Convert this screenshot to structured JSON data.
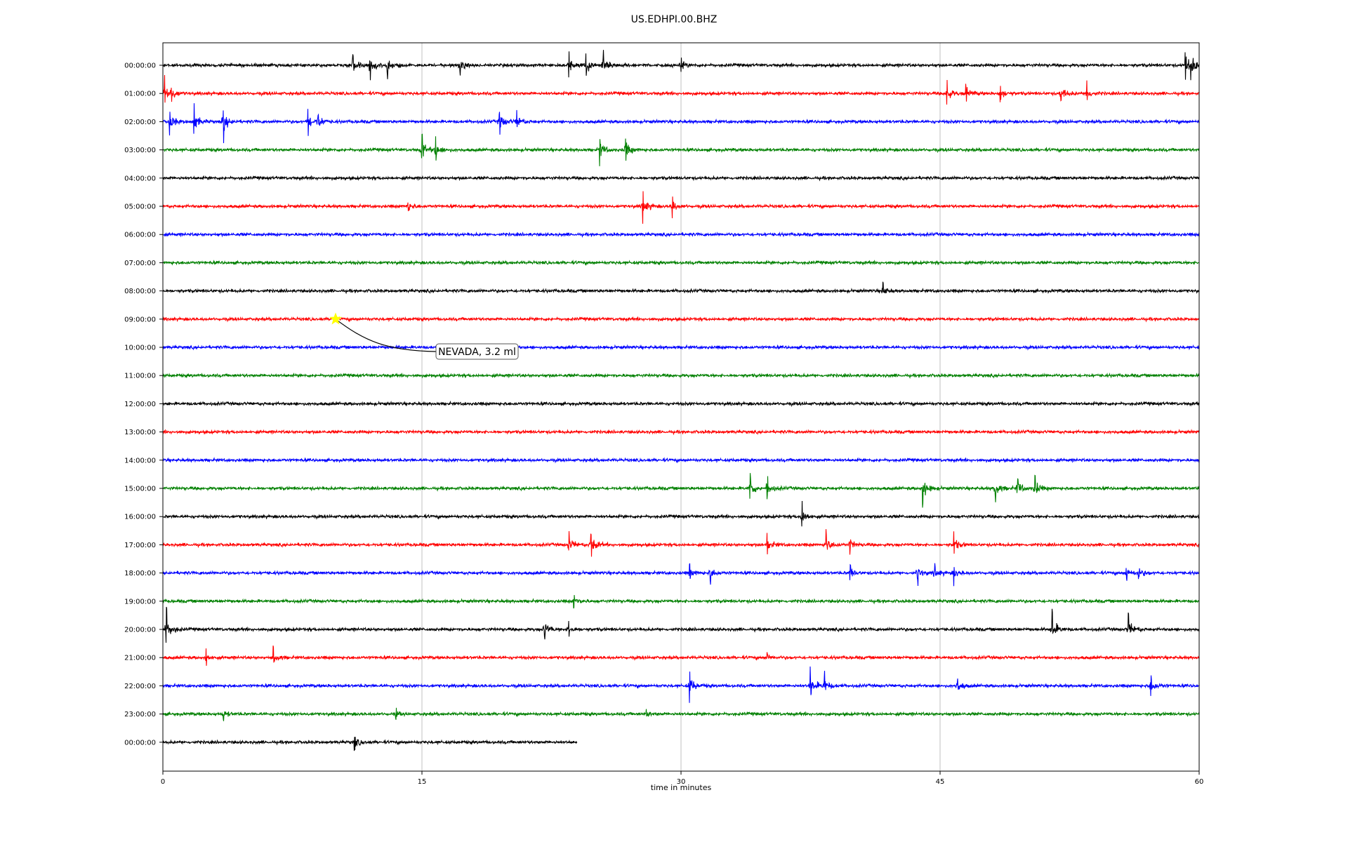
{
  "chart_data": {
    "type": "line",
    "title": "US.EDHPI.00.BHZ",
    "xlabel": "time in minutes",
    "xlim": [
      0,
      60
    ],
    "x_ticks": [
      "0",
      "15",
      "30",
      "45",
      "60"
    ],
    "grid": "vertical lines at 15-minute ticks",
    "row_labels": [
      "00:00:00",
      "01:00:00",
      "02:00:00",
      "03:00:00",
      "04:00:00",
      "05:00:00",
      "06:00:00",
      "07:00:00",
      "08:00:00",
      "09:00:00",
      "10:00:00",
      "11:00:00",
      "12:00:00",
      "13:00:00",
      "14:00:00",
      "15:00:00",
      "16:00:00",
      "17:00:00",
      "18:00:00",
      "19:00:00",
      "20:00:00",
      "21:00:00",
      "22:00:00",
      "23:00:00",
      "00:00:00"
    ],
    "row_colors": [
      "#000000",
      "#ff0000",
      "#0000ff",
      "#008000"
    ],
    "last_row_end_minute": 24,
    "bursts": [
      {
        "row": 0,
        "t": [
          11,
          12,
          13,
          17.2,
          23.5,
          24.5,
          25.5,
          30,
          59.2,
          59.5
        ],
        "a": [
          0.9,
          1.0,
          0.8,
          0.5,
          0.7,
          0.9,
          0.7,
          0.4,
          1.3,
          0.9
        ]
      },
      {
        "row": 1,
        "t": [
          0.1,
          0.5,
          45.4,
          46.5,
          48.5,
          52,
          53.5
        ],
        "a": [
          1.1,
          0.5,
          0.8,
          0.6,
          0.6,
          0.8,
          0.6
        ]
      },
      {
        "row": 2,
        "t": [
          0.4,
          1.8,
          3.5,
          8.4,
          9,
          19.5,
          20.5
        ],
        "a": [
          0.9,
          1.1,
          1.0,
          0.9,
          0.7,
          1.0,
          0.7
        ]
      },
      {
        "row": 3,
        "t": [
          15,
          15.8,
          25.3,
          26.8
        ],
        "a": [
          1.0,
          0.9,
          0.9,
          0.9
        ]
      },
      {
        "row": 5,
        "t": [
          14.2,
          27.8,
          29.5
        ],
        "a": [
          0.5,
          1.0,
          0.7
        ]
      },
      {
        "row": 8,
        "t": [
          41.7
        ],
        "a": [
          0.5
        ]
      },
      {
        "row": 15,
        "t": [
          34,
          35,
          44,
          48.2,
          49.5,
          50.5
        ],
        "a": [
          1.0,
          0.8,
          1.1,
          0.8,
          0.8,
          0.8
        ]
      },
      {
        "row": 16,
        "t": [
          37
        ],
        "a": [
          0.9
        ]
      },
      {
        "row": 17,
        "t": [
          23.5,
          24.8,
          35,
          38.4,
          39.8,
          45.8
        ],
        "a": [
          0.8,
          0.9,
          0.6,
          0.8,
          0.5,
          0.7
        ]
      },
      {
        "row": 18,
        "t": [
          30.5,
          31.7,
          39.8,
          43.7,
          44.7,
          45.8,
          55.8,
          56.5
        ],
        "a": [
          0.6,
          0.6,
          0.5,
          0.6,
          0.6,
          0.6,
          0.6,
          0.5
        ]
      },
      {
        "row": 19,
        "t": [
          23.8
        ],
        "a": [
          0.5
        ]
      },
      {
        "row": 20,
        "t": [
          0.2,
          22.1,
          23.5,
          51.5,
          55.9
        ],
        "a": [
          1.3,
          0.8,
          0.5,
          1.1,
          1.0
        ]
      },
      {
        "row": 21,
        "t": [
          2.5,
          6.4,
          35
        ],
        "a": [
          0.4,
          0.6,
          0.3
        ]
      },
      {
        "row": 22,
        "t": [
          30.5,
          37.5,
          38.3,
          46,
          57.2
        ],
        "a": [
          1.1,
          1.1,
          0.7,
          0.6,
          0.9
        ]
      },
      {
        "row": 23,
        "t": [
          3.5,
          13.5,
          28
        ],
        "a": [
          0.4,
          0.3,
          0.3
        ]
      },
      {
        "row": 24,
        "t": [
          11.1
        ],
        "a": [
          0.6
        ]
      }
    ],
    "event": {
      "label": "NEVADA, 3.2 ml",
      "minute": 10,
      "row": 9,
      "marker": "star",
      "marker_color": "#ffff00"
    }
  }
}
